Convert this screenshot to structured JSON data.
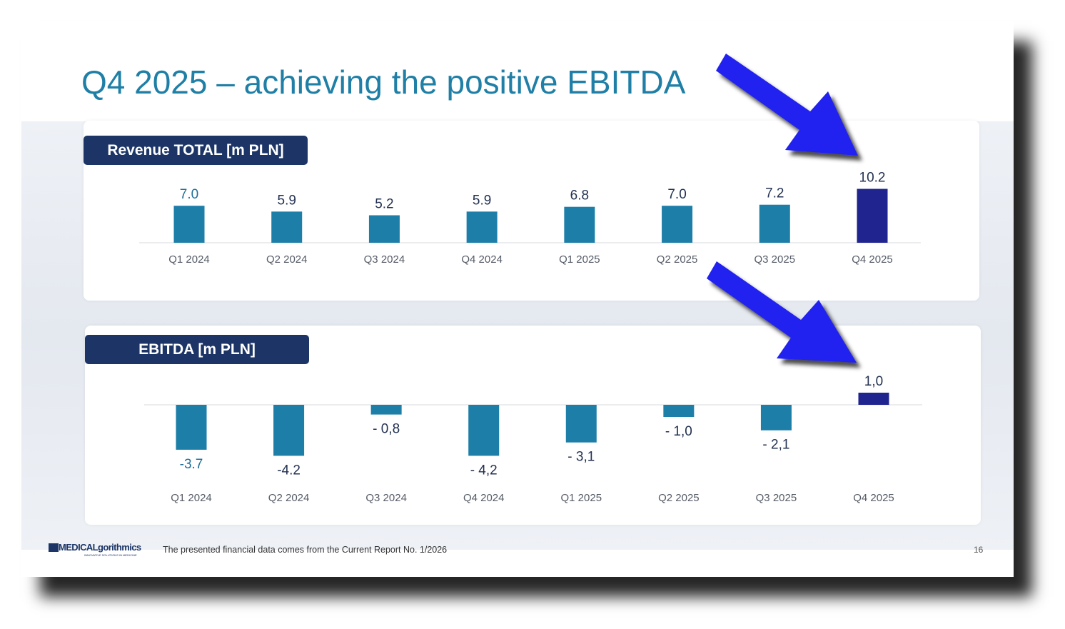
{
  "slide": {
    "title": "Q4 2025 – achieving the positive EBITDA",
    "footer_note": "The presented financial data comes from the Current Report No. 1/2026",
    "page_number": "16",
    "logo_text": "MEDICALgorithmics",
    "logo_tagline": "INNOVATIVE SOLUTIONS IN MEDICINE"
  },
  "colors": {
    "title": "#1f7fa6",
    "bar": "#1d7ea8",
    "bar_highlight": "#20248f",
    "badge": "#1c3566",
    "arrow": "#2020f0",
    "label_dark": "#233252",
    "label_blue": "#1f6f99"
  },
  "chart_data": [
    {
      "type": "bar",
      "title": "Revenue TOTAL [m PLN]",
      "categories": [
        "Q1 2024",
        "Q2 2024",
        "Q3 2024",
        "Q4 2024",
        "Q1 2025",
        "Q2 2025",
        "Q3 2025",
        "Q4 2025"
      ],
      "values": [
        7.0,
        5.9,
        5.2,
        5.9,
        6.8,
        7.0,
        7.2,
        10.2
      ],
      "value_labels": [
        "7.0",
        "5.9",
        "5.2",
        "5.9",
        "6.8",
        "7.0",
        "7.2",
        "10.2"
      ],
      "highlight_index": 7,
      "ylim": [
        0,
        10.2
      ],
      "grid": false,
      "legend": "none"
    },
    {
      "type": "bar",
      "title": "EBITDA [m PLN]",
      "categories": [
        "Q1 2024",
        "Q2 2024",
        "Q3 2024",
        "Q4 2024",
        "Q1 2025",
        "Q2 2025",
        "Q3 2025",
        "Q4 2025"
      ],
      "values": [
        -3.7,
        -4.2,
        -0.8,
        -4.2,
        -3.1,
        -1.0,
        -2.1,
        1.0
      ],
      "value_labels": [
        "-3.7",
        "-4.2",
        "- 0,8",
        "- 4,2",
        "- 3,1",
        "- 1,0",
        "- 2,1",
        "1,0"
      ],
      "highlight_index": 7,
      "ylim": [
        -4.2,
        1.0
      ],
      "grid": false,
      "legend": "none"
    }
  ]
}
